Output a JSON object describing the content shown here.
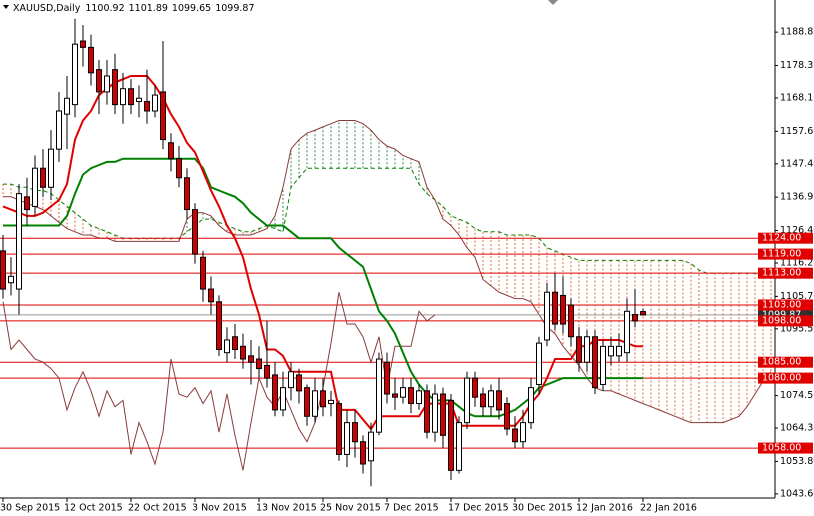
{
  "chart_data": {
    "type": "candlestick",
    "symbol": "XAUUSD,Daily",
    "categories": [
      "30 Sep 2015",
      null,
      null,
      null,
      null,
      null,
      null,
      null,
      "12 Oct 2015",
      null,
      null,
      null,
      null,
      null,
      null,
      null,
      "22 Oct 2015",
      null,
      null,
      null,
      null,
      null,
      null,
      null,
      "3 Nov 2015",
      null,
      null,
      null,
      null,
      null,
      null,
      null,
      "13 Nov 2015",
      null,
      null,
      null,
      null,
      null,
      null,
      null,
      "25 Nov 2015",
      null,
      null,
      null,
      null,
      null,
      null,
      null,
      "7 Dec 2015",
      null,
      null,
      null,
      null,
      null,
      null,
      null,
      "17 Dec 2015",
      null,
      null,
      null,
      null,
      null,
      null,
      null,
      "30 Dec 2015",
      null,
      null,
      null,
      null,
      null,
      null,
      null,
      "12 Jan 2016",
      null,
      null,
      null,
      null,
      null,
      null,
      null,
      "22 Jan 2016"
    ],
    "open": [
      1120,
      1110,
      1108,
      1137,
      1134,
      1146,
      1140,
      1152,
      1163,
      1166,
      1186,
      1184,
      1177,
      1170,
      1177,
      1166,
      1171,
      1167,
      1167,
      1164,
      1170,
      1154,
      1149,
      1143,
      1133,
      1118,
      1108,
      1104,
      1088,
      1093,
      1090,
      1087,
      1086,
      1084,
      1081,
      1070,
      1077,
      1081,
      1077,
      1068,
      1076,
      1072,
      1072,
      1056,
      1066,
      1060,
      1054,
      1063,
      1085,
      1075,
      1074,
      1077,
      1072,
      1076,
      1063,
      1075,
      1073,
      1051,
      1066,
      1080,
      1075,
      1071,
      1076,
      1072,
      1064,
      1060,
      1066,
      1078,
      1092,
      1107,
      1106,
      1103,
      1093,
      1085,
      1093,
      1078,
      1087,
      1087,
      1088,
      1100,
      1100.92
    ],
    "high": [
      1125,
      1118,
      1141,
      1143,
      1150,
      1152,
      1158,
      1170,
      1175,
      1193,
      1191,
      1188,
      1180,
      1180,
      1182,
      1176,
      1174,
      1172,
      1177,
      1172,
      1186,
      1157,
      1153,
      1146,
      1135,
      1120,
      1112,
      1106,
      1096,
      1097,
      1094,
      1092,
      1090,
      1098,
      1085,
      1082,
      1085,
      1083,
      1078,
      1080,
      1080,
      1076,
      1073,
      1070,
      1070,
      1062,
      1066,
      1088,
      1088,
      1080,
      1080,
      1080,
      1078,
      1078,
      1078,
      1077,
      1075,
      1068,
      1082,
      1082,
      1077,
      1078,
      1080,
      1074,
      1068,
      1070,
      1080,
      1093,
      1110,
      1113,
      1112,
      1105,
      1096,
      1095,
      1095,
      1092,
      1093,
      1094,
      1105,
      1108,
      1101.89
    ],
    "low": [
      1105,
      1106,
      1100,
      1128,
      1131,
      1137,
      1136,
      1148,
      1152,
      1162,
      1178,
      1172,
      1163,
      1166,
      1163,
      1160,
      1163,
      1162,
      1160,
      1162,
      1152,
      1145,
      1140,
      1130,
      1116,
      1104,
      1100,
      1087,
      1085,
      1086,
      1083,
      1078,
      1080,
      1077,
      1068,
      1068,
      1073,
      1072,
      1065,
      1066,
      1068,
      1068,
      1054,
      1052,
      1055,
      1050,
      1046,
      1062,
      1072,
      1070,
      1072,
      1069,
      1070,
      1061,
      1060,
      1058,
      1048,
      1050,
      1064,
      1071,
      1068,
      1068,
      1067,
      1062,
      1058,
      1058,
      1064,
      1075,
      1090,
      1095,
      1094,
      1090,
      1082,
      1082,
      1075,
      1076,
      1084,
      1085,
      1085,
      1096,
      1099.65
    ],
    "close": [
      1108,
      1112,
      1138,
      1133,
      1146,
      1140,
      1152,
      1164,
      1168,
      1185,
      1184,
      1176,
      1170,
      1175,
      1166,
      1171,
      1166,
      1168,
      1164,
      1169,
      1155,
      1149,
      1143,
      1133,
      1119,
      1108,
      1104,
      1089,
      1092,
      1089,
      1086,
      1085,
      1083,
      1080,
      1070,
      1077,
      1082,
      1076,
      1068,
      1076,
      1071,
      1073,
      1056,
      1066,
      1060,
      1053,
      1063,
      1086,
      1075,
      1074,
      1077,
      1072,
      1076,
      1063,
      1075,
      1062,
      1051,
      1066,
      1080,
      1074,
      1071,
      1076,
      1070,
      1064,
      1060,
      1066,
      1077,
      1091,
      1107,
      1097,
      1097,
      1093,
      1085,
      1093,
      1077,
      1090,
      1090,
      1090,
      1101,
      1098,
      1099.87
    ],
    "up_color": "#ffffff",
    "down_color": "#cc0000",
    "tenkan": {
      "color": "#e00000",
      "values": [
        1134,
        1133,
        1132,
        1131,
        1131,
        1132,
        1134,
        1136,
        1141,
        1155,
        1161,
        1164,
        1169,
        1171,
        1173,
        1174,
        1175,
        1175,
        1175,
        1172,
        1168,
        1163,
        1159,
        1154,
        1151,
        1145,
        1139,
        1134,
        1128,
        1124,
        1118,
        1108,
        1100,
        1089,
        1089,
        1087,
        1082,
        1082,
        1082,
        1082,
        1082,
        1082,
        1070,
        1070,
        1070,
        1067,
        1064,
        1068,
        1068,
        1068,
        1068,
        1068,
        1068,
        1072,
        1072,
        1072,
        1072,
        1065,
        1065,
        1065,
        1065,
        1065,
        1065,
        1065,
        1065,
        1068,
        1072,
        1075,
        1080,
        1086,
        1086,
        1086,
        1090,
        1090,
        1092,
        1092,
        1092,
        1092,
        1091,
        1090,
        1090
      ]
    },
    "kijun": {
      "color": "#008000",
      "values": [
        1128,
        1128,
        1128,
        1128,
        1128,
        1128,
        1128,
        1128,
        1131,
        1138,
        1144,
        1146,
        1147,
        1148,
        1148,
        1149,
        1149,
        1149,
        1149,
        1149,
        1149,
        1149,
        1149,
        1149,
        1149,
        1146,
        1140,
        1139,
        1138,
        1137,
        1135,
        1132,
        1130,
        1128,
        1128,
        1128,
        1126,
        1124,
        1124,
        1124,
        1124,
        1124,
        1121,
        1119,
        1117,
        1115,
        1108,
        1101,
        1098,
        1094,
        1088,
        1082,
        1078,
        1075,
        1073,
        1073,
        1073,
        1071,
        1069,
        1068,
        1068,
        1068,
        1068,
        1069,
        1070,
        1072,
        1074,
        1077,
        1078,
        1079,
        1080,
        1080,
        1080,
        1080,
        1080,
        1080,
        1080,
        1080,
        1080,
        1080,
        1080
      ]
    },
    "chikou_color": "#8b3a3a",
    "span_a": {
      "color": "#008000",
      "values": [
        1141,
        1141,
        1140,
        1140,
        1139,
        1139,
        1138,
        1136,
        1134,
        1132,
        1130,
        1128,
        1127,
        1126,
        1125,
        1124,
        1124,
        1124,
        1124,
        1124,
        1124,
        1124,
        1124,
        1126,
        1128,
        1130,
        1130,
        1129,
        1128,
        1127,
        1126,
        1126,
        1127,
        1128,
        1127,
        1126,
        1140,
        1143,
        1146,
        1146,
        1146,
        1146,
        1146,
        1146,
        1146,
        1146,
        1146,
        1146,
        1146,
        1146,
        1146,
        1146,
        1141,
        1138,
        1136,
        1134,
        1131,
        1130,
        1129,
        1127,
        1126,
        1126,
        1126,
        1125,
        1125,
        1125,
        1125,
        1124,
        1121,
        1120,
        1119,
        1118,
        1117,
        1117,
        1117,
        1117,
        1117,
        1117,
        1117,
        1117,
        1117,
        1117,
        1117,
        1117,
        1117,
        1117,
        1116,
        1114,
        1113,
        1113,
        1113,
        1113,
        1113,
        1113,
        1113,
        1113,
        1113
      ]
    },
    "span_b": {
      "color": "#8b3a3a",
      "values": [
        1137,
        1137,
        1136,
        1135,
        1134,
        1133,
        1131,
        1129,
        1127,
        1126,
        1125,
        1125,
        1124,
        1124,
        1123,
        1123,
        1123,
        1123,
        1123,
        1123,
        1123,
        1123,
        1123,
        1130,
        1132,
        1132,
        1131,
        1128,
        1126,
        1125,
        1125,
        1125,
        1126,
        1127,
        1131,
        1140,
        1152,
        1155,
        1157,
        1158,
        1159,
        1160,
        1161,
        1161,
        1161,
        1160,
        1158,
        1155,
        1153,
        1152,
        1150,
        1149,
        1148,
        1140,
        1136,
        1130,
        1128,
        1125,
        1121,
        1118,
        1111,
        1109,
        1107,
        1106,
        1105,
        1105,
        1104,
        1100,
        1096,
        1094,
        1090,
        1087,
        1084,
        1080,
        1077,
        1076,
        1076,
        1075,
        1074,
        1073,
        1072,
        1071,
        1070,
        1069,
        1068,
        1067,
        1066,
        1066,
        1066,
        1066,
        1066,
        1067,
        1068,
        1071,
        1075,
        1079,
        1082
      ]
    },
    "cloud_up_color": "#e8692a",
    "cloud_down_color": "#2e8b57",
    "levels": [
      {
        "value": 1124,
        "label": "1124.00"
      },
      {
        "value": 1119,
        "label": "1119.00"
      },
      {
        "value": 1113,
        "label": "1113.00"
      },
      {
        "value": 1103,
        "label": "1103.00"
      },
      {
        "value": 1098,
        "label": "1098.00"
      },
      {
        "value": 1085,
        "label": "1085.00"
      },
      {
        "value": 1080,
        "label": "1080.00"
      },
      {
        "value": 1058,
        "label": "1058.00"
      }
    ],
    "level_color": "#e00000",
    "ylim": [
      1042.3,
      1198.9
    ],
    "yticks": [
      {
        "value": 1188.8,
        "label": "1188.80"
      },
      {
        "value": 1178.3,
        "label": "1178.30"
      },
      {
        "value": 1168.1,
        "label": "1168.10"
      },
      {
        "value": 1157.6,
        "label": "1157.60"
      },
      {
        "value": 1147.4,
        "label": "1147.40"
      },
      {
        "value": 1136.9,
        "label": "1136.90"
      },
      {
        "value": 1126.4,
        "label": "1126.40"
      },
      {
        "value": 1116.2,
        "label": "1116.20"
      },
      {
        "value": 1105.7,
        "label": "1105.70"
      },
      {
        "value": 1095.5,
        "label": "1095.50"
      },
      {
        "value": 1085,
        "label": "1085.00"
      },
      {
        "value": 1074.5,
        "label": "1074.50"
      },
      {
        "value": 1064.3,
        "label": "1064.30"
      },
      {
        "value": 1053.8,
        "label": "1053.80"
      },
      {
        "value": 1043.6,
        "label": "1043.60"
      }
    ]
  }
}
